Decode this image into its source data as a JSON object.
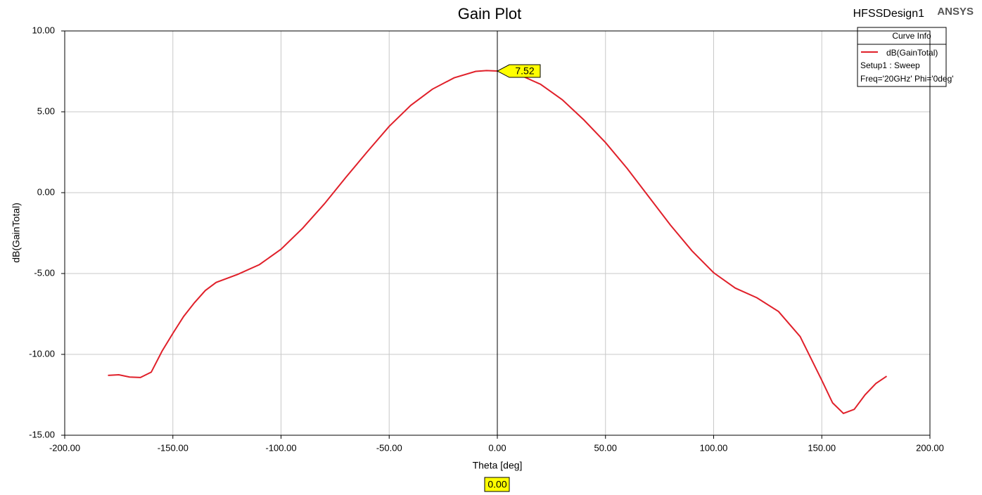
{
  "chart_data": {
    "type": "line",
    "title": "Gain Plot",
    "design": "HFSSDesign1",
    "brand": "ANSYS",
    "x_label": "Theta [deg]",
    "y_label": "dB(GainTotal)",
    "legend_title": "Curve Info",
    "legend_lines": [
      "Setup1 : Sweep",
      "Freq='20GHz' Phi='0deg'"
    ],
    "x": [
      -180,
      -175,
      -170,
      -165,
      -160,
      -155,
      -150,
      -145,
      -140,
      -135,
      -130,
      -120,
      -110,
      -100,
      -90,
      -80,
      -70,
      -60,
      -50,
      -40,
      -30,
      -20,
      -10,
      -5,
      0,
      10,
      20,
      30,
      40,
      50,
      60,
      70,
      80,
      90,
      100,
      110,
      120,
      130,
      140,
      150,
      155,
      160,
      165,
      170,
      175,
      180
    ],
    "series": [
      {
        "name": "dB(GainTotal)",
        "color": "#e0202a",
        "values": [
          -11.3,
          -11.26,
          -11.4,
          -11.43,
          -11.1,
          -9.8,
          -8.7,
          -7.65,
          -6.8,
          -6.05,
          -5.55,
          -5.05,
          -4.45,
          -3.5,
          -2.2,
          -0.7,
          0.95,
          2.55,
          4.1,
          5.4,
          6.4,
          7.1,
          7.5,
          7.55,
          7.52,
          7.3,
          6.7,
          5.75,
          4.5,
          3.1,
          1.5,
          -0.25,
          -2.0,
          -3.6,
          -4.95,
          -5.9,
          -6.5,
          -7.35,
          -8.9,
          -11.6,
          -13.0,
          -13.65,
          -13.4,
          -12.5,
          -11.8,
          -11.35
        ]
      }
    ],
    "marker": {
      "x": {
        "value": 0,
        "label": "0.00"
      },
      "y": 7.52
    },
    "xlim": [
      -200,
      200
    ],
    "xticks": [
      {
        "value": -200,
        "label": "-200.00"
      },
      {
        "value": -150,
        "label": "-150.00"
      },
      {
        "value": -100,
        "label": "-100.00"
      },
      {
        "value": -50,
        "label": "-50.00"
      },
      {
        "value": 0,
        "label": "0.00"
      },
      {
        "value": 50,
        "label": "50.00"
      },
      {
        "value": 100,
        "label": "100.00"
      },
      {
        "value": 150,
        "label": "150.00"
      },
      {
        "value": 200,
        "label": "200.00"
      }
    ],
    "ylim": [
      -15,
      10
    ],
    "yticks": [
      {
        "value": -15,
        "label": "-15.00"
      },
      {
        "value": -10,
        "label": "-10.00"
      },
      {
        "value": -5,
        "label": "-5.00"
      },
      {
        "value": 0,
        "label": "0.00"
      },
      {
        "value": 5,
        "label": "5.00"
      },
      {
        "value": 10,
        "label": "10.00"
      }
    ],
    "grid": true
  }
}
